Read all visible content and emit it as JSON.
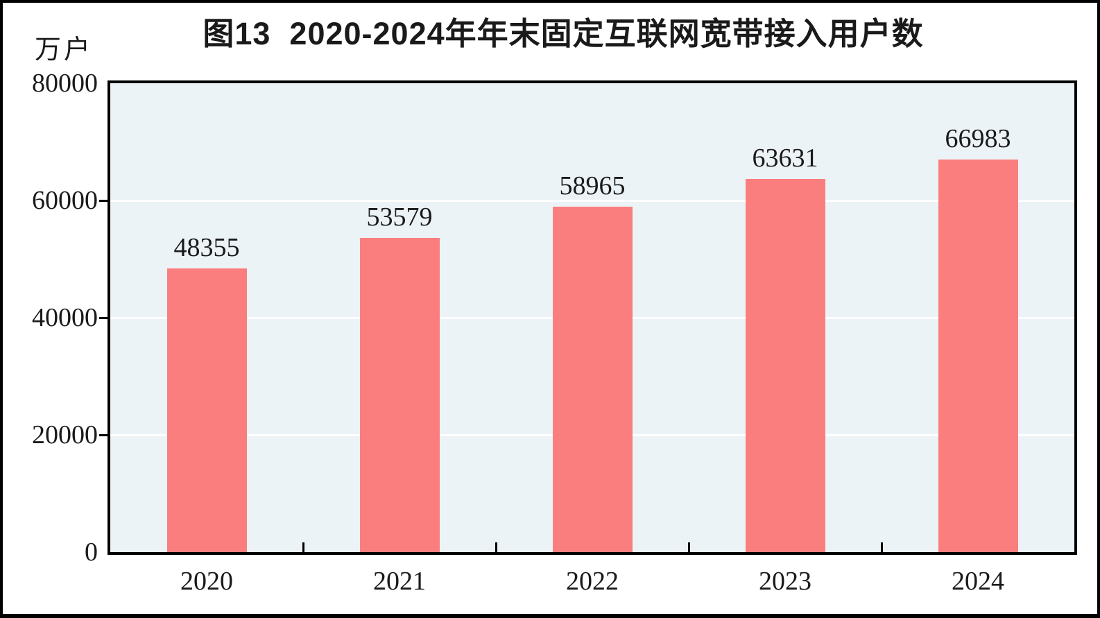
{
  "chart_data": {
    "type": "bar",
    "title": "图13  2020-2024年年末固定互联网宽带接入用户数",
    "unit_label": "万户",
    "categories": [
      "2020",
      "2021",
      "2022",
      "2023",
      "2024"
    ],
    "values": [
      48355,
      53579,
      58965,
      63631,
      66983
    ],
    "ylim": [
      0,
      80000
    ],
    "yticks": [
      0,
      20000,
      40000,
      60000,
      80000
    ],
    "grid": "horizontal",
    "legend_position": "none",
    "colors": {
      "bar": "#fb7e7e",
      "plot_bg": "#ecf3f7",
      "gridline": "#ffffff",
      "axis": "#000000",
      "text": "#1a1a1a",
      "canvas_bg": "#ffffff",
      "frame": "#000000"
    }
  }
}
